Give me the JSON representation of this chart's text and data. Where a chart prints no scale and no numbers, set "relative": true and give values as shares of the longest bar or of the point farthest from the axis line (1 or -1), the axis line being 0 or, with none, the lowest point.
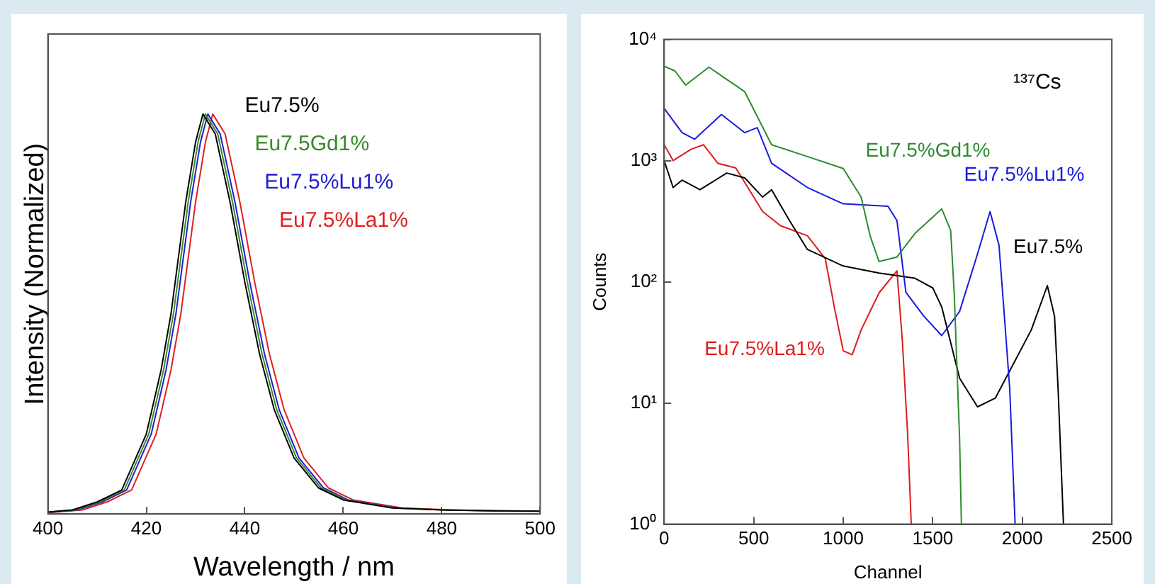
{
  "chart_data": [
    {
      "type": "line",
      "relative": true,
      "xlabel": "Wavelength / nm",
      "ylabel": "Intensity (Normalized)",
      "xlim": [
        400,
        500
      ],
      "xticks": [
        400,
        420,
        440,
        460,
        480,
        500
      ],
      "grid": false,
      "legend": false,
      "marker": "none",
      "tick_labels": "x",
      "series": [
        {
          "name": "Eu7.5%",
          "color": "#000000",
          "x": [
            400,
            405,
            410,
            415,
            420,
            423,
            425,
            428,
            430,
            431.5,
            434,
            437,
            440,
            443,
            446,
            450,
            455,
            460,
            470,
            480,
            490,
            500
          ],
          "values": [
            0.005,
            0.01,
            0.03,
            0.06,
            0.2,
            0.36,
            0.5,
            0.78,
            0.93,
            1,
            0.95,
            0.78,
            0.58,
            0.4,
            0.26,
            0.14,
            0.065,
            0.035,
            0.015,
            0.01,
            0.008,
            0.007
          ]
        },
        {
          "name": "Eu7.5Gd1%",
          "color": "#3a8a2a",
          "x": [
            400,
            405.5,
            410.5,
            415.5,
            420.5,
            423.5,
            425.5,
            428.5,
            430.5,
            432,
            434.5,
            437.5,
            440.5,
            443.5,
            446.5,
            450.5,
            455.5,
            460.5,
            470.5,
            480.5,
            490.5,
            500
          ],
          "values": [
            0.005,
            0.01,
            0.03,
            0.06,
            0.2,
            0.36,
            0.5,
            0.78,
            0.93,
            1,
            0.95,
            0.78,
            0.58,
            0.4,
            0.26,
            0.14,
            0.065,
            0.035,
            0.015,
            0.01,
            0.008,
            0.007
          ]
        },
        {
          "name": "Eu7.5%Lu1%",
          "color": "#2020d0",
          "x": [
            400,
            406,
            411,
            416,
            421,
            424,
            426,
            429,
            431,
            432.5,
            435,
            438,
            441,
            444,
            447,
            451,
            456,
            461,
            471
          ],
          "values": [
            0.004,
            0.01,
            0.03,
            0.06,
            0.2,
            0.36,
            0.5,
            0.78,
            0.93,
            1,
            0.95,
            0.78,
            0.58,
            0.4,
            0.26,
            0.14,
            0.065,
            0.035,
            0.015
          ]
        },
        {
          "name": "Eu7.5%La1%",
          "color": "#e02020",
          "x": [
            400,
            407,
            412,
            417,
            422,
            425,
            427,
            430,
            432,
            433.5,
            436,
            439,
            442,
            445,
            448,
            452,
            457,
            462,
            472,
            482,
            492,
            500
          ],
          "values": [
            0.003,
            0.01,
            0.03,
            0.06,
            0.2,
            0.36,
            0.5,
            0.78,
            0.93,
            1,
            0.95,
            0.78,
            0.58,
            0.4,
            0.26,
            0.14,
            0.065,
            0.035,
            0.015,
            0.01,
            0.008,
            0.007
          ]
        }
      ]
    },
    {
      "type": "line",
      "xlabel": "Channel",
      "ylabel": "Counts",
      "log": "y",
      "xlim": [
        0,
        2500
      ],
      "xticks": [
        0,
        500,
        1000,
        1500,
        2000,
        2500
      ],
      "ylim": [
        1,
        10000
      ],
      "yticks": [
        {
          "value": 1,
          "label": "10⁰"
        },
        {
          "value": 10,
          "label": "10¹"
        },
        {
          "value": 100,
          "label": "10²"
        },
        {
          "value": 1000,
          "label": "10³"
        },
        {
          "value": 10000,
          "label": "10⁴"
        }
      ],
      "grid": false,
      "legend": false,
      "marker": "none",
      "annotations": [
        "¹³⁷Cs"
      ],
      "series": [
        {
          "name": "Eu7.5%Gd1%",
          "color": "#2e8b2e",
          "x": [
            0,
            60,
            120,
            250,
            450,
            600,
            800,
            1000,
            1100,
            1150,
            1200,
            1300,
            1400,
            1550,
            1600,
            1620,
            1650,
            1660
          ],
          "values": [
            6000,
            5500,
            4200,
            5900,
            3700,
            1350,
            1080,
            860,
            500,
            240,
            147,
            160,
            250,
            400,
            265,
            80,
            5,
            1
          ]
        },
        {
          "name": "Eu7.5%Lu1%",
          "color": "#1a1ae0",
          "x": [
            0,
            100,
            170,
            320,
            450,
            520,
            600,
            800,
            1000,
            1250,
            1300,
            1350,
            1450,
            1550,
            1650,
            1750,
            1820,
            1870,
            1900,
            1930,
            1960
          ],
          "values": [
            2700,
            1700,
            1500,
            2400,
            1700,
            1870,
            950,
            600,
            440,
            420,
            320,
            82,
            52,
            36,
            57,
            170,
            380,
            200,
            52,
            13,
            1
          ]
        },
        {
          "name": "Eu7.5%",
          "color": "#000000",
          "x": [
            0,
            50,
            100,
            200,
            350,
            450,
            550,
            600,
            700,
            800,
            1000,
            1200,
            1400,
            1500,
            1550,
            1650,
            1750,
            1850,
            1950,
            2050,
            2140,
            2180,
            2200,
            2230
          ],
          "values": [
            1000,
            600,
            690,
            575,
            790,
            720,
            500,
            575,
            320,
            185,
            135,
            118,
            107,
            89,
            62,
            16,
            9.3,
            11,
            21,
            40,
            93,
            52,
            13,
            1
          ]
        },
        {
          "name": "Eu7.5%La1%",
          "color": "#e01a1a",
          "x": [
            0,
            50,
            150,
            220,
            300,
            400,
            550,
            650,
            800,
            900,
            950,
            1000,
            1050,
            1100,
            1200,
            1300,
            1330,
            1360,
            1380
          ],
          "values": [
            1350,
            1000,
            1240,
            1350,
            950,
            870,
            380,
            290,
            240,
            155,
            62,
            27,
            25,
            40,
            81,
            123,
            33,
            5.4,
            1
          ]
        }
      ]
    }
  ]
}
